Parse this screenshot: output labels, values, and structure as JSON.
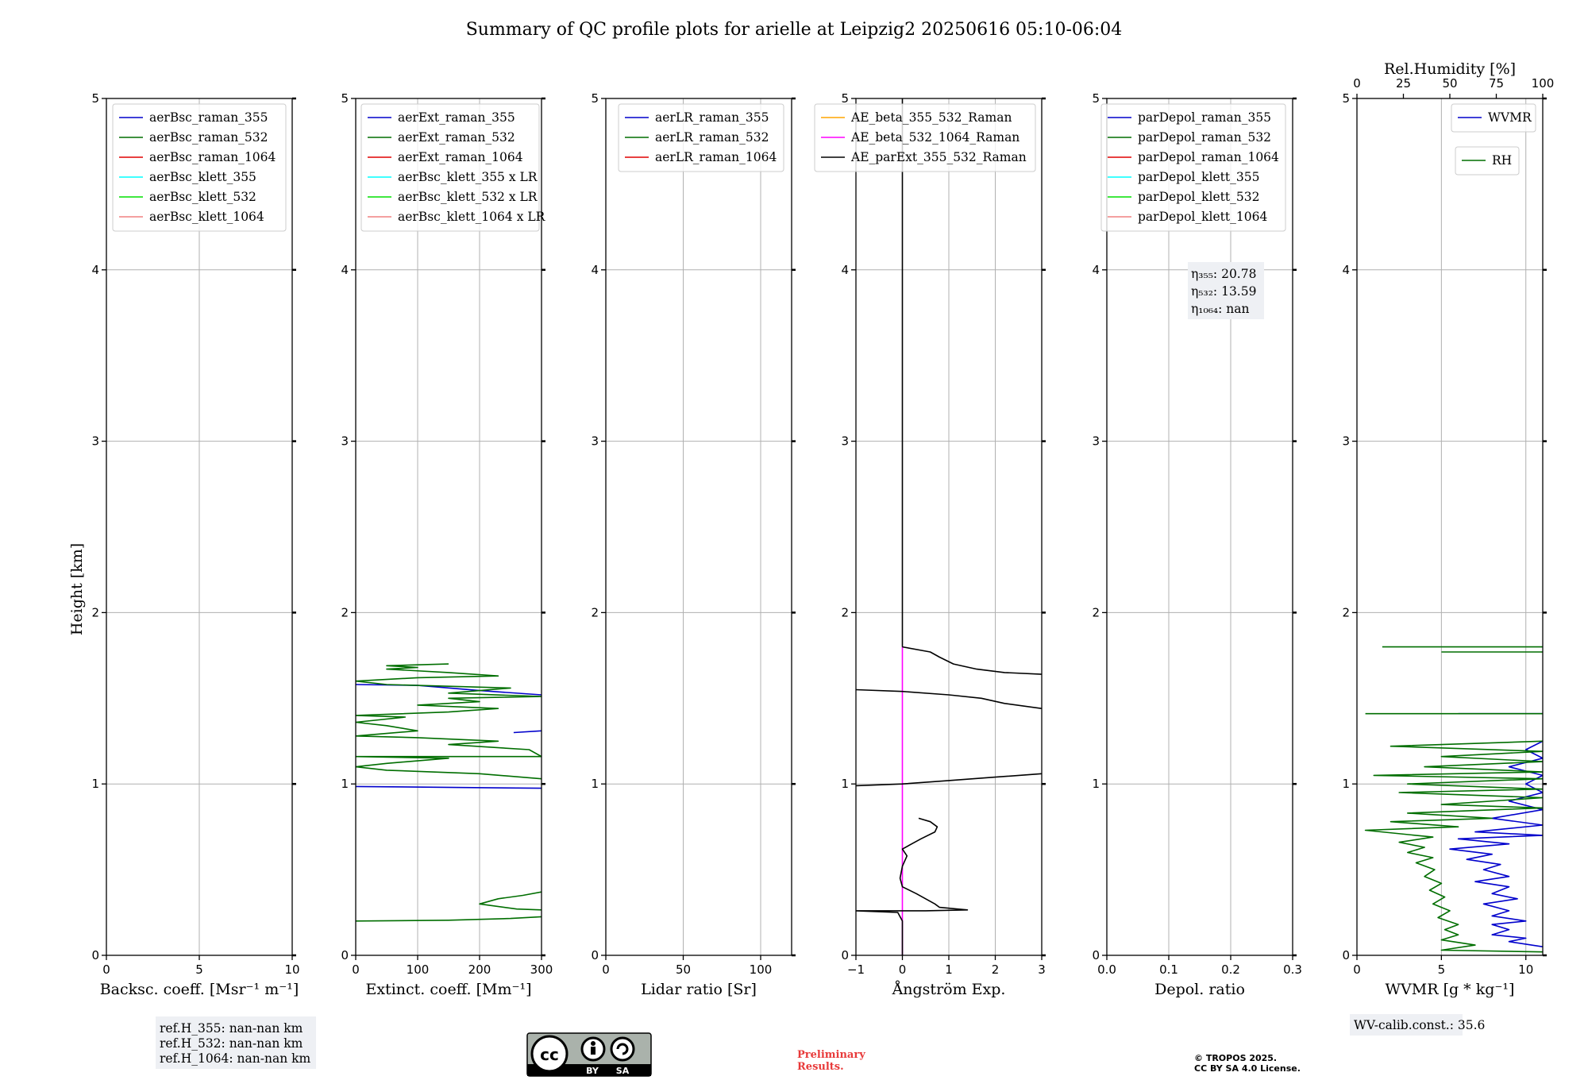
{
  "title": "Summary of QC profile plots for arielle at Leipzig2 20250616 05:10-06:04",
  "shared": {
    "ylabel": "Height [km]",
    "ylim": [
      0,
      5
    ],
    "yticks": [
      "0",
      "1",
      "2",
      "3",
      "4",
      "5"
    ]
  },
  "colors": {
    "blue": "#0000cc",
    "green": "#006e00",
    "red": "#e00000",
    "cyan": "#00ffff",
    "lime": "#00e000",
    "salmon": "#f08080",
    "orange": "#ffa500",
    "magenta": "#ff00ff",
    "black": "#000000"
  },
  "chart_data": [
    {
      "type": "line",
      "xlabel": "Backsc. coeff. [Msr⁻¹ m⁻¹]",
      "xlim": [
        0,
        10
      ],
      "xticks": [
        0,
        5,
        10
      ],
      "legend": [
        "aerBsc_raman_355",
        "aerBsc_raman_532",
        "aerBsc_raman_1064",
        "aerBsc_klett_355",
        "aerBsc_klett_532",
        "aerBsc_klett_1064"
      ],
      "legend_colors": [
        "blue",
        "green",
        "red",
        "cyan",
        "lime",
        "salmon"
      ],
      "legend_position": "top-right",
      "series": []
    },
    {
      "type": "line",
      "xlabel": "Extinct. coeff. [Mm⁻¹]",
      "xlim": [
        0,
        300
      ],
      "xticks": [
        0,
        100,
        200,
        300
      ],
      "legend": [
        "aerExt_raman_355",
        "aerExt_raman_532",
        "aerExt_raman_1064",
        "aerBsc_klett_355 x LR",
        "aerBsc_klett_532 x LR",
        "aerBsc_klett_1064 x LR"
      ],
      "legend_colors": [
        "blue",
        "green",
        "red",
        "cyan",
        "lime",
        "salmon"
      ],
      "legend_position": "top-right",
      "series": [
        {
          "color": "blue",
          "points": [
            [
              0,
              0.985
            ],
            [
              300,
              0.975
            ]
          ]
        },
        {
          "color": "blue",
          "points": [
            [
              255,
              1.3
            ],
            [
              300,
              1.31
            ]
          ]
        },
        {
          "color": "blue",
          "points": [
            [
              0,
              1.58
            ],
            [
              100,
              1.575
            ],
            [
              200,
              1.545
            ],
            [
              300,
              1.52
            ]
          ]
        },
        {
          "color": "green",
          "points": [
            [
              0,
              0.2
            ],
            [
              150,
              0.205
            ],
            [
              250,
              0.215
            ],
            [
              300,
              0.225
            ]
          ]
        },
        {
          "color": "green",
          "points": [
            [
              300,
              0.265
            ],
            [
              260,
              0.27
            ],
            [
              200,
              0.3
            ],
            [
              230,
              0.33
            ],
            [
              270,
              0.35
            ],
            [
              300,
              0.37
            ]
          ]
        },
        {
          "color": "green",
          "points": [
            [
              300,
              1.03
            ],
            [
              200,
              1.06
            ],
            [
              50,
              1.08
            ],
            [
              0,
              1.1
            ],
            [
              50,
              1.12
            ],
            [
              150,
              1.15
            ],
            [
              0,
              1.16
            ],
            [
              300,
              1.16
            ],
            [
              280,
              1.2
            ],
            [
              150,
              1.23
            ],
            [
              230,
              1.25
            ],
            [
              100,
              1.27
            ],
            [
              0,
              1.28
            ],
            [
              100,
              1.31
            ],
            [
              50,
              1.34
            ],
            [
              0,
              1.36
            ],
            [
              80,
              1.39
            ],
            [
              0,
              1.4
            ],
            [
              150,
              1.42
            ],
            [
              230,
              1.44
            ],
            [
              100,
              1.46
            ],
            [
              200,
              1.48
            ],
            [
              150,
              1.5
            ],
            [
              300,
              1.51
            ],
            [
              150,
              1.53
            ],
            [
              250,
              1.56
            ],
            [
              50,
              1.58
            ],
            [
              0,
              1.6
            ],
            [
              100,
              1.62
            ],
            [
              230,
              1.63
            ],
            [
              150,
              1.65
            ],
            [
              50,
              1.67
            ],
            [
              100,
              1.68
            ],
            [
              50,
              1.69
            ],
            [
              150,
              1.7
            ]
          ]
        }
      ]
    },
    {
      "type": "line",
      "xlabel": "Lidar ratio [Sr]",
      "xlim": [
        0,
        120
      ],
      "xticks": [
        0,
        50,
        100
      ],
      "legend": [
        "aerLR_raman_355",
        "aerLR_raman_532",
        "aerLR_raman_1064"
      ],
      "legend_colors": [
        "blue",
        "green",
        "red"
      ],
      "legend_position": "top-right",
      "series": []
    },
    {
      "type": "line",
      "xlabel": "Ångström Exp.",
      "xlim": [
        -1,
        3
      ],
      "xticks": [
        "−1",
        "0",
        "1",
        "2",
        "3"
      ],
      "xtick_values": [
        -1,
        0,
        1,
        2,
        3
      ],
      "legend": [
        "AE_beta_355_532_Raman",
        "AE_beta_532_1064_Raman",
        "AE_parExt_355_532_Raman"
      ],
      "legend_colors": [
        "orange",
        "magenta",
        "black"
      ],
      "legend_position": "top-left",
      "series": [
        {
          "color": "magenta",
          "points": [
            [
              0,
              0.0
            ],
            [
              0,
              1.8
            ]
          ]
        },
        {
          "color": "black",
          "points": [
            [
              0,
              0.0
            ],
            [
              0,
              0.2
            ],
            [
              -0.1,
              0.25
            ],
            [
              -1,
              0.26
            ],
            [
              0.5,
              0.26
            ],
            [
              1.4,
              0.265
            ],
            [
              0.8,
              0.28
            ],
            [
              0.7,
              0.3
            ],
            [
              0.3,
              0.36
            ],
            [
              0,
              0.4
            ],
            [
              -0.05,
              0.45
            ],
            [
              0,
              0.52
            ],
            [
              0.1,
              0.58
            ],
            [
              0,
              0.62
            ],
            [
              0.2,
              0.65
            ],
            [
              0.4,
              0.68
            ],
            [
              0.7,
              0.72
            ],
            [
              0.75,
              0.75
            ],
            [
              0.6,
              0.78
            ],
            [
              0.35,
              0.8
            ]
          ]
        },
        {
          "color": "black",
          "points": [
            [
              -1,
              0.99
            ],
            [
              0,
              1.0
            ],
            [
              1,
              1.02
            ],
            [
              2,
              1.04
            ],
            [
              3,
              1.06
            ]
          ]
        },
        {
          "color": "black",
          "points": [
            [
              -1,
              1.55
            ],
            [
              0,
              1.54
            ],
            [
              1,
              1.52
            ],
            [
              1.7,
              1.5
            ],
            [
              2.2,
              1.47
            ],
            [
              3,
              1.44
            ]
          ]
        },
        {
          "color": "black",
          "points": [
            [
              0,
              1.8
            ],
            [
              0.6,
              1.77
            ],
            [
              0.8,
              1.74
            ],
            [
              1.1,
              1.7
            ],
            [
              1.6,
              1.67
            ],
            [
              2.2,
              1.65
            ],
            [
              3,
              1.64
            ]
          ]
        },
        {
          "color": "black",
          "points": [
            [
              0,
              1.8
            ],
            [
              0,
              5.0
            ]
          ]
        }
      ]
    },
    {
      "type": "line",
      "xlabel": "Depol. ratio",
      "xlim": [
        0,
        0.3
      ],
      "xticks": [
        "0.0",
        "0.1",
        "0.2",
        "0.3"
      ],
      "xtick_values": [
        0,
        0.1,
        0.2,
        0.3
      ],
      "legend": [
        "parDepol_raman_355",
        "parDepol_raman_532",
        "parDepol_raman_1064",
        "parDepol_klett_355",
        "parDepol_klett_532",
        "parDepol_klett_1064"
      ],
      "legend_colors": [
        "blue",
        "green",
        "red",
        "cyan",
        "lime",
        "salmon"
      ],
      "legend_position": "top-left",
      "annotation": [
        "η₃₅₅: 20.78",
        "η₅₃₂: 13.59",
        "η₁₀₆₄: nan"
      ],
      "series": []
    },
    {
      "type": "line",
      "xlabel": "WVMR [g * kg⁻¹]",
      "xlim": [
        0,
        11
      ],
      "xticks": [
        0,
        5,
        10
      ],
      "top_xlabel": "Rel.Humidity [%]",
      "top_xlim": [
        0,
        100
      ],
      "top_xticks": [
        0,
        25,
        50,
        75,
        100
      ],
      "legend": [
        "WVMR"
      ],
      "legend_colors": [
        "blue"
      ],
      "legend2": [
        "RH"
      ],
      "legend2_colors": [
        "green"
      ],
      "legend_position": "top-right",
      "series": [
        {
          "color": "blue",
          "points": [
            [
              11,
              0.05
            ],
            [
              9,
              0.08
            ],
            [
              10,
              0.1
            ],
            [
              8,
              0.12
            ],
            [
              9,
              0.15
            ],
            [
              8,
              0.18
            ],
            [
              10,
              0.2
            ],
            [
              8,
              0.23
            ],
            [
              9,
              0.26
            ],
            [
              7.5,
              0.3
            ],
            [
              9.5,
              0.33
            ],
            [
              8,
              0.36
            ],
            [
              9,
              0.4
            ],
            [
              7,
              0.43
            ],
            [
              9,
              0.46
            ],
            [
              7.5,
              0.5
            ],
            [
              8.5,
              0.53
            ],
            [
              6.5,
              0.56
            ],
            [
              8,
              0.59
            ],
            [
              5.5,
              0.62
            ],
            [
              9,
              0.65
            ],
            [
              6,
              0.68
            ],
            [
              11,
              0.7
            ],
            [
              7,
              0.72
            ],
            [
              11,
              0.76
            ],
            [
              8,
              0.8
            ],
            [
              11,
              0.85
            ],
            [
              9,
              0.9
            ],
            [
              11,
              0.95
            ],
            [
              10,
              1.0
            ],
            [
              11,
              1.05
            ],
            [
              9,
              1.1
            ],
            [
              11,
              1.15
            ],
            [
              10,
              1.2
            ],
            [
              11,
              1.25
            ]
          ]
        },
        {
          "color": "blue",
          "points": [
            [
              6,
              1.41
            ],
            [
              11,
              1.41
            ]
          ]
        },
        {
          "color": "green",
          "points": [
            [
              11,
              0.02
            ],
            [
              5,
              0.03
            ],
            [
              7,
              0.06
            ],
            [
              5,
              0.09
            ],
            [
              6,
              0.12
            ],
            [
              5.2,
              0.15
            ],
            [
              6,
              0.18
            ],
            [
              4.8,
              0.22
            ],
            [
              5.5,
              0.26
            ],
            [
              4.5,
              0.3
            ],
            [
              5.2,
              0.34
            ],
            [
              4.3,
              0.38
            ],
            [
              5,
              0.42
            ],
            [
              4,
              0.46
            ],
            [
              4.6,
              0.5
            ],
            [
              3.5,
              0.54
            ],
            [
              4.5,
              0.57
            ],
            [
              3,
              0.6
            ],
            [
              4,
              0.63
            ],
            [
              2.5,
              0.66
            ],
            [
              4.5,
              0.69
            ],
            [
              0.5,
              0.73
            ],
            [
              6,
              0.75
            ],
            [
              2,
              0.78
            ],
            [
              8,
              0.8
            ],
            [
              3,
              0.83
            ],
            [
              11,
              0.86
            ],
            [
              5,
              0.88
            ],
            [
              11,
              0.92
            ],
            [
              2.5,
              0.95
            ],
            [
              11,
              0.97
            ],
            [
              3,
              1.0
            ],
            [
              11,
              1.03
            ],
            [
              1,
              1.05
            ],
            [
              11,
              1.07
            ],
            [
              4,
              1.1
            ],
            [
              11,
              1.13
            ],
            [
              5,
              1.16
            ],
            [
              11,
              1.19
            ],
            [
              2,
              1.22
            ],
            [
              11,
              1.25
            ]
          ]
        },
        {
          "color": "green",
          "points": [
            [
              0.5,
              1.41
            ],
            [
              11,
              1.41
            ]
          ]
        },
        {
          "color": "green",
          "points": [
            [
              5,
              1.77
            ],
            [
              11,
              1.77
            ]
          ]
        },
        {
          "color": "green",
          "points": [
            [
              1.5,
              1.8
            ],
            [
              11,
              1.8
            ]
          ]
        }
      ]
    }
  ],
  "ref_box": [
    "ref.H_355: nan-nan km",
    "ref.H_532: nan-nan km",
    "ref.H_1064: nan-nan km"
  ],
  "wv_box": "WV-calib.const.: 35.6",
  "prelim": [
    "Preliminary",
    "Results."
  ],
  "license": [
    "© TROPOS 2025.",
    "CC BY SA 4.0 License."
  ],
  "cc_badge": {
    "by": "BY",
    "sa": "SA",
    "cc": "cc"
  }
}
